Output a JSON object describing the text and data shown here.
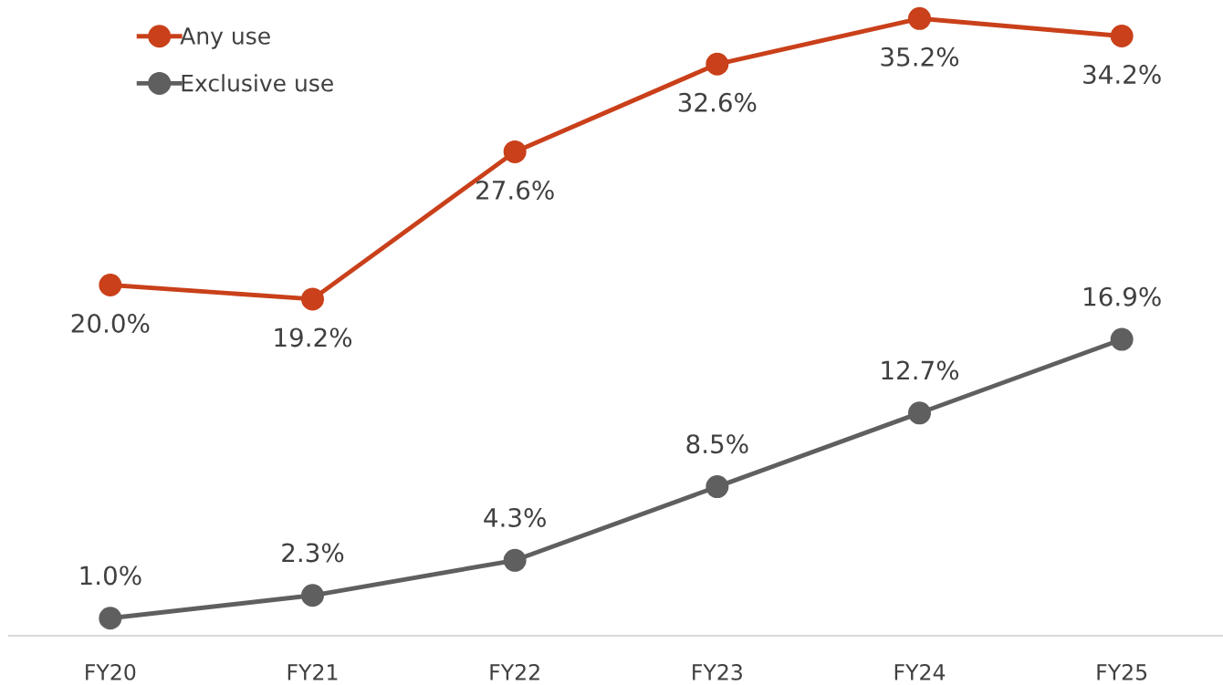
{
  "chart_data": {
    "type": "line",
    "categories": [
      "FY20",
      "FY21",
      "FY22",
      "FY23",
      "FY24",
      "FY25"
    ],
    "series": [
      {
        "name": "Any use",
        "color": "#c9401a",
        "values": [
          20.0,
          19.2,
          27.6,
          32.6,
          35.2,
          34.2
        ],
        "value_labels": [
          "20.0%",
          "19.2%",
          "27.6%",
          "32.6%",
          "35.2%",
          "34.2%"
        ]
      },
      {
        "name": "Exclusive use",
        "color": "#5f5f5f",
        "values": [
          1.0,
          2.3,
          4.3,
          8.5,
          12.7,
          16.9
        ],
        "value_labels": [
          "1.0%",
          "2.3%",
          "4.3%",
          "8.5%",
          "12.7%",
          "16.9%"
        ]
      }
    ],
    "marker": "circle",
    "line_style": "solid",
    "legend": "top left",
    "grid": false
  }
}
